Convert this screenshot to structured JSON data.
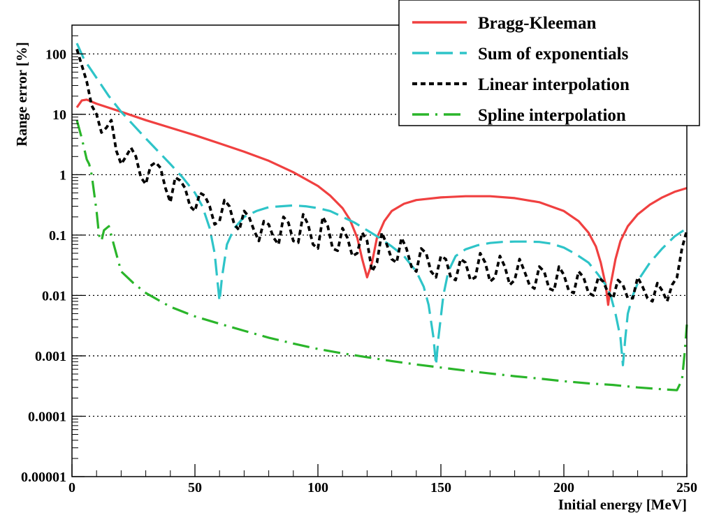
{
  "chart_data": {
    "type": "line",
    "xlabel": "Initial energy [MeV]",
    "ylabel": "Range error [%]",
    "xlim": [
      0,
      250
    ],
    "ylim": [
      1e-05,
      300
    ],
    "yscale": "log",
    "grid": "horizontal dotted at decades",
    "legend_position": "top-right",
    "x_ticks": [
      "0",
      "50",
      "100",
      "150",
      "200",
      "250"
    ],
    "y_ticks": [
      "0.00001",
      "0.0001",
      "0.001",
      "0.01",
      "0.1",
      "1",
      "10",
      "100"
    ],
    "series": [
      {
        "name": "Bragg-Kleeman",
        "color": "#f04040",
        "style": "solid",
        "points": [
          [
            2,
            13
          ],
          [
            4,
            17
          ],
          [
            6,
            17.5
          ],
          [
            10,
            15
          ],
          [
            20,
            11
          ],
          [
            30,
            8
          ],
          [
            40,
            6
          ],
          [
            50,
            4.5
          ],
          [
            60,
            3.3
          ],
          [
            70,
            2.4
          ],
          [
            80,
            1.7
          ],
          [
            90,
            1.1
          ],
          [
            100,
            0.65
          ],
          [
            105,
            0.45
          ],
          [
            110,
            0.28
          ],
          [
            113,
            0.18
          ],
          [
            116,
            0.09
          ],
          [
            118,
            0.04
          ],
          [
            120,
            0.02
          ],
          [
            122,
            0.035
          ],
          [
            124,
            0.09
          ],
          [
            127,
            0.17
          ],
          [
            130,
            0.25
          ],
          [
            135,
            0.33
          ],
          [
            140,
            0.38
          ],
          [
            150,
            0.42
          ],
          [
            160,
            0.44
          ],
          [
            170,
            0.44
          ],
          [
            180,
            0.41
          ],
          [
            190,
            0.35
          ],
          [
            200,
            0.25
          ],
          [
            206,
            0.17
          ],
          [
            210,
            0.11
          ],
          [
            213,
            0.065
          ],
          [
            215,
            0.035
          ],
          [
            217,
            0.015
          ],
          [
            218,
            0.007
          ],
          [
            219,
            0.015
          ],
          [
            221,
            0.04
          ],
          [
            223,
            0.08
          ],
          [
            226,
            0.14
          ],
          [
            230,
            0.22
          ],
          [
            235,
            0.32
          ],
          [
            240,
            0.42
          ],
          [
            245,
            0.52
          ],
          [
            250,
            0.6
          ]
        ]
      },
      {
        "name": "Sum of exponentials",
        "color": "#2ec4c8",
        "style": "long-dash",
        "points": [
          [
            2,
            150
          ],
          [
            5,
            80
          ],
          [
            10,
            40
          ],
          [
            15,
            20
          ],
          [
            20,
            11
          ],
          [
            30,
            4
          ],
          [
            40,
            1.5
          ],
          [
            45,
            0.9
          ],
          [
            50,
            0.5
          ],
          [
            53,
            0.3
          ],
          [
            56,
            0.13
          ],
          [
            58,
            0.05
          ],
          [
            59,
            0.02
          ],
          [
            60,
            0.008
          ],
          [
            61,
            0.02
          ],
          [
            63,
            0.07
          ],
          [
            66,
            0.13
          ],
          [
            70,
            0.2
          ],
          [
            75,
            0.25
          ],
          [
            80,
            0.29
          ],
          [
            85,
            0.3
          ],
          [
            90,
            0.31
          ],
          [
            95,
            0.3
          ],
          [
            100,
            0.28
          ],
          [
            105,
            0.25
          ],
          [
            110,
            0.2
          ],
          [
            115,
            0.16
          ],
          [
            120,
            0.12
          ],
          [
            125,
            0.09
          ],
          [
            130,
            0.065
          ],
          [
            135,
            0.045
          ],
          [
            140,
            0.025
          ],
          [
            143,
            0.014
          ],
          [
            145,
            0.007
          ],
          [
            147,
            0.002
          ],
          [
            148,
            0.0007
          ],
          [
            149,
            0.002
          ],
          [
            151,
            0.01
          ],
          [
            153,
            0.025
          ],
          [
            156,
            0.045
          ],
          [
            160,
            0.058
          ],
          [
            165,
            0.068
          ],
          [
            170,
            0.074
          ],
          [
            175,
            0.077
          ],
          [
            180,
            0.078
          ],
          [
            185,
            0.078
          ],
          [
            190,
            0.077
          ],
          [
            195,
            0.072
          ],
          [
            200,
            0.062
          ],
          [
            205,
            0.048
          ],
          [
            210,
            0.035
          ],
          [
            214,
            0.022
          ],
          [
            217,
            0.015
          ],
          [
            219,
            0.01
          ],
          [
            221,
            0.005
          ],
          [
            223,
            0.002
          ],
          [
            224,
            0.0007
          ],
          [
            225,
            0.002
          ],
          [
            226,
            0.005
          ],
          [
            228,
            0.01
          ],
          [
            231,
            0.02
          ],
          [
            235,
            0.035
          ],
          [
            240,
            0.06
          ],
          [
            245,
            0.095
          ],
          [
            250,
            0.13
          ]
        ]
      },
      {
        "name": "Linear interpolation",
        "color": "#000000",
        "style": "dotted",
        "points": [
          [
            2,
            120
          ],
          [
            6,
            35
          ],
          [
            8,
            14
          ],
          [
            10,
            10
          ],
          [
            12,
            5
          ],
          [
            14,
            6
          ],
          [
            16,
            8
          ],
          [
            18,
            2.5
          ],
          [
            20,
            1.5
          ],
          [
            22,
            2
          ],
          [
            24,
            2.8
          ],
          [
            26,
            2
          ],
          [
            28,
            0.9
          ],
          [
            30,
            0.7
          ],
          [
            32,
            1.4
          ],
          [
            34,
            1.6
          ],
          [
            36,
            1.3
          ],
          [
            38,
            0.6
          ],
          [
            40,
            0.35
          ],
          [
            42,
            0.9
          ],
          [
            44,
            0.8
          ],
          [
            46,
            0.6
          ],
          [
            48,
            0.3
          ],
          [
            50,
            0.25
          ],
          [
            52,
            0.5
          ],
          [
            54,
            0.45
          ],
          [
            56,
            0.3
          ],
          [
            58,
            0.15
          ],
          [
            60,
            0.17
          ],
          [
            62,
            0.38
          ],
          [
            64,
            0.3
          ],
          [
            66,
            0.15
          ],
          [
            68,
            0.12
          ],
          [
            70,
            0.25
          ],
          [
            72,
            0.2
          ],
          [
            74,
            0.12
          ],
          [
            76,
            0.08
          ],
          [
            78,
            0.17
          ],
          [
            80,
            0.15
          ],
          [
            82,
            0.09
          ],
          [
            84,
            0.07
          ],
          [
            86,
            0.2
          ],
          [
            88,
            0.16
          ],
          [
            90,
            0.08
          ],
          [
            92,
            0.075
          ],
          [
            94,
            0.22
          ],
          [
            96,
            0.15
          ],
          [
            98,
            0.07
          ],
          [
            100,
            0.06
          ],
          [
            102,
            0.2
          ],
          [
            104,
            0.14
          ],
          [
            106,
            0.06
          ],
          [
            108,
            0.055
          ],
          [
            110,
            0.13
          ],
          [
            112,
            0.09
          ],
          [
            114,
            0.045
          ],
          [
            116,
            0.05
          ],
          [
            118,
            0.11
          ],
          [
            120,
            0.08
          ],
          [
            122,
            0.025
          ],
          [
            124,
            0.035
          ],
          [
            126,
            0.11
          ],
          [
            128,
            0.07
          ],
          [
            130,
            0.04
          ],
          [
            132,
            0.035
          ],
          [
            134,
            0.09
          ],
          [
            136,
            0.06
          ],
          [
            138,
            0.03
          ],
          [
            140,
            0.025
          ],
          [
            142,
            0.06
          ],
          [
            144,
            0.05
          ],
          [
            146,
            0.025
          ],
          [
            148,
            0.02
          ],
          [
            150,
            0.045
          ],
          [
            152,
            0.04
          ],
          [
            154,
            0.02
          ],
          [
            156,
            0.018
          ],
          [
            158,
            0.04
          ],
          [
            160,
            0.035
          ],
          [
            162,
            0.018
          ],
          [
            164,
            0.02
          ],
          [
            166,
            0.05
          ],
          [
            168,
            0.035
          ],
          [
            170,
            0.017
          ],
          [
            172,
            0.02
          ],
          [
            174,
            0.045
          ],
          [
            176,
            0.03
          ],
          [
            178,
            0.015
          ],
          [
            180,
            0.018
          ],
          [
            182,
            0.04
          ],
          [
            184,
            0.025
          ],
          [
            186,
            0.015
          ],
          [
            188,
            0.013
          ],
          [
            190,
            0.03
          ],
          [
            192,
            0.025
          ],
          [
            194,
            0.013
          ],
          [
            196,
            0.012
          ],
          [
            198,
            0.03
          ],
          [
            200,
            0.022
          ],
          [
            202,
            0.012
          ],
          [
            204,
            0.011
          ],
          [
            206,
            0.025
          ],
          [
            208,
            0.02
          ],
          [
            210,
            0.011
          ],
          [
            212,
            0.01
          ],
          [
            214,
            0.02
          ],
          [
            216,
            0.017
          ],
          [
            218,
            0.011
          ],
          [
            220,
            0.009
          ],
          [
            222,
            0.018
          ],
          [
            224,
            0.015
          ],
          [
            226,
            0.009
          ],
          [
            228,
            0.009
          ],
          [
            230,
            0.02
          ],
          [
            232,
            0.014
          ],
          [
            234,
            0.009
          ],
          [
            236,
            0.008
          ],
          [
            238,
            0.016
          ],
          [
            240,
            0.012
          ],
          [
            242,
            0.008
          ],
          [
            244,
            0.015
          ],
          [
            246,
            0.02
          ],
          [
            248,
            0.06
          ],
          [
            250,
            0.12
          ]
        ]
      },
      {
        "name": "Spline interpolation",
        "color": "#2ab52a",
        "style": "dash-dot",
        "points": [
          [
            2,
            8
          ],
          [
            4,
            4
          ],
          [
            6,
            1.8
          ],
          [
            7,
            1.5
          ],
          [
            8,
            1
          ],
          [
            9,
            0.5
          ],
          [
            10,
            0.25
          ],
          [
            11,
            0.1
          ],
          [
            12,
            0.08
          ],
          [
            13,
            0.12
          ],
          [
            15,
            0.14
          ],
          [
            17,
            0.07
          ],
          [
            19,
            0.035
          ],
          [
            20,
            0.025
          ],
          [
            25,
            0.016
          ],
          [
            30,
            0.011
          ],
          [
            40,
            0.0065
          ],
          [
            50,
            0.0045
          ],
          [
            60,
            0.0034
          ],
          [
            70,
            0.0026
          ],
          [
            80,
            0.002
          ],
          [
            90,
            0.0016
          ],
          [
            100,
            0.0013
          ],
          [
            110,
            0.0011
          ],
          [
            120,
            0.00095
          ],
          [
            130,
            0.00082
          ],
          [
            140,
            0.00072
          ],
          [
            150,
            0.00064
          ],
          [
            160,
            0.00057
          ],
          [
            170,
            0.00051
          ],
          [
            180,
            0.00046
          ],
          [
            190,
            0.00042
          ],
          [
            200,
            0.00038
          ],
          [
            210,
            0.00035
          ],
          [
            220,
            0.00033
          ],
          [
            230,
            0.0003
          ],
          [
            240,
            0.00028
          ],
          [
            246,
            0.00027
          ],
          [
            248,
            0.0004
          ],
          [
            249,
            0.001
          ],
          [
            250,
            0.0033
          ]
        ]
      }
    ]
  }
}
